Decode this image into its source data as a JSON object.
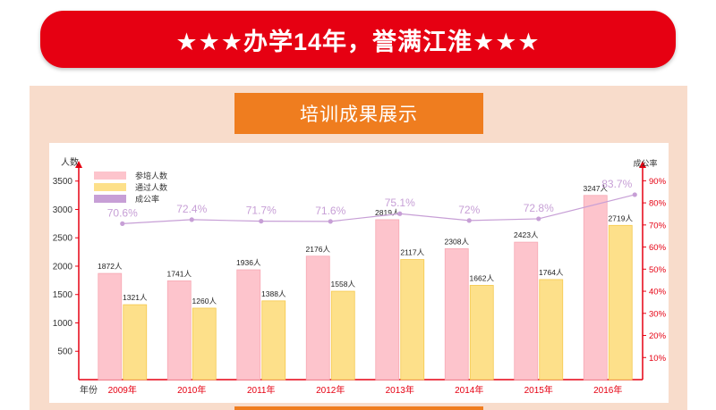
{
  "banner": {
    "title": "★★★办学14年，誉满江淮★★★"
  },
  "section": {
    "title": "培训成果展示"
  },
  "colors": {
    "banner_red": "#e60012",
    "title_orange": "#ef7d1f",
    "panel_bg": "#f8dccb",
    "attend_pink": "#fdc4cc",
    "pass_yellow": "#fde08a",
    "rate_purple": "#c79fd6",
    "axis_red": "#e60012"
  },
  "chart_data": {
    "type": "bar",
    "categories": [
      "2009年",
      "2010年",
      "2011年",
      "2012年",
      "2013年",
      "2014年",
      "2015年",
      "2016年"
    ],
    "x_axis_label": "年份",
    "y_left_label": "人数",
    "y_right_label": "成公率",
    "y_left_ticks": [
      "500",
      "1000",
      "1500",
      "2000",
      "2500",
      "3000",
      "3500"
    ],
    "y_left_tick_values": [
      500,
      1000,
      1500,
      2000,
      2500,
      3000,
      3500
    ],
    "y_right_ticks": [
      "10%",
      "20%",
      "30%",
      "40%",
      "50%",
      "60%",
      "70%",
      "80%",
      "90%"
    ],
    "y_right_tick_values": [
      10,
      20,
      30,
      40,
      50,
      60,
      70,
      80,
      90
    ],
    "ylim_left": [
      0,
      3700
    ],
    "ylim_right": [
      0,
      95
    ],
    "legend_position": "top-left",
    "series": [
      {
        "name": "参培人数",
        "kind": "bar",
        "values": [
          1872,
          1741,
          1936,
          2176,
          2819,
          2308,
          2423,
          3247
        ],
        "labels": [
          "1872人",
          "1741人",
          "1936人",
          "2176人",
          "2819人",
          "2308人",
          "2423人",
          "3247人"
        ]
      },
      {
        "name": "通过人数",
        "kind": "bar",
        "values": [
          1321,
          1260,
          1388,
          1558,
          2117,
          1662,
          1764,
          2719
        ],
        "labels": [
          "1321人",
          "1260人",
          "1388人",
          "1558人",
          "2117人",
          "1662人",
          "1764人",
          "2719人"
        ]
      },
      {
        "name": "成公率",
        "kind": "line",
        "axis": "right",
        "values": [
          70.6,
          72.4,
          71.7,
          71.6,
          75.1,
          72,
          72.8,
          83.7
        ],
        "labels": [
          "70.6%",
          "72.4%",
          "71.7%",
          "71.6%",
          "75.1%",
          "72%",
          "72.8%",
          "83.7%"
        ]
      }
    ]
  }
}
